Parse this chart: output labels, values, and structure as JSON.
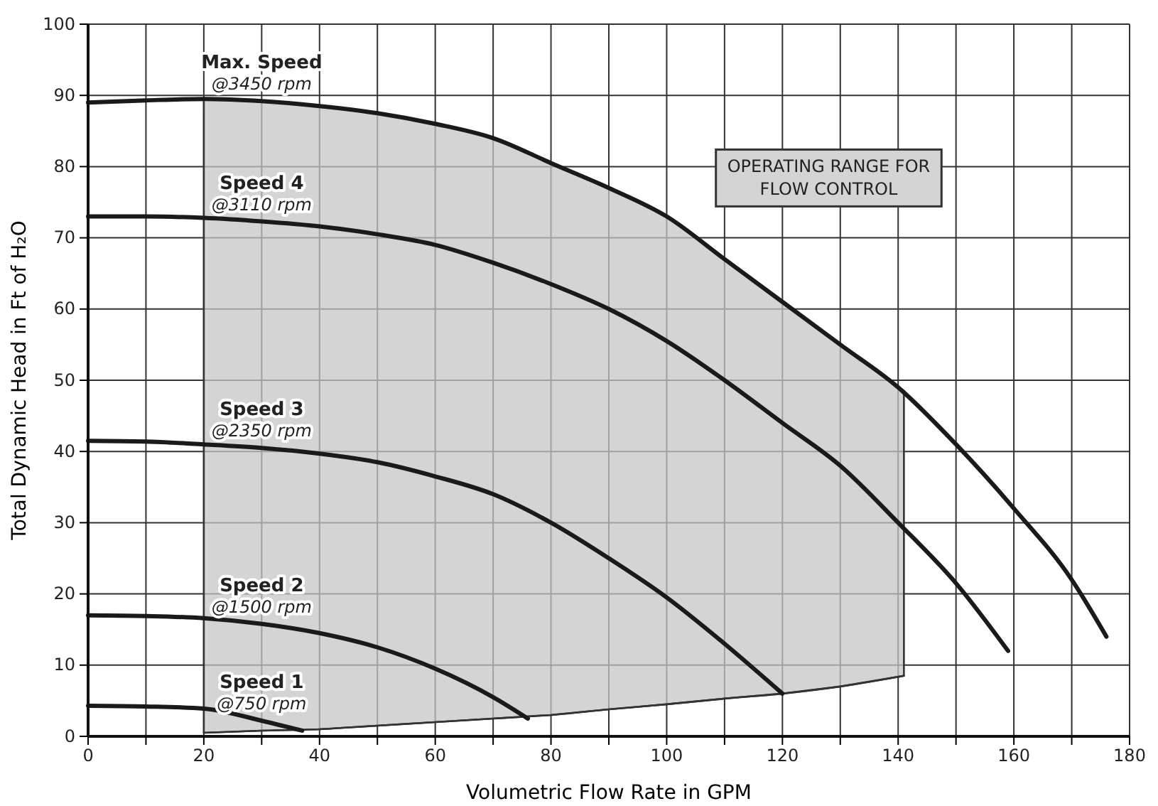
{
  "chart_data": {
    "type": "line",
    "xlabel": "Volumetric Flow Rate in GPM",
    "ylabel": "Total Dynamic Head in Ft of H₂O",
    "xlim": [
      0,
      180
    ],
    "ylim": [
      0,
      100
    ],
    "xticks": [
      0,
      {
        "value": 10,
        "label": null
      },
      20,
      {
        "value": 30,
        "label": null
      },
      40,
      {
        "value": 50,
        "label": null
      },
      60,
      {
        "value": 70,
        "label": null
      },
      80,
      {
        "value": 90,
        "label": null
      },
      100,
      {
        "value": 110,
        "label": null
      },
      120,
      {
        "value": 130,
        "label": null
      },
      140,
      {
        "value": 150,
        "label": null
      },
      160,
      {
        "value": 170,
        "label": null
      },
      180
    ],
    "yticks": [
      0,
      10,
      20,
      30,
      40,
      50,
      60,
      70,
      80,
      90,
      100
    ],
    "grid": true,
    "line_style": "solid",
    "marker": "none",
    "annotations": [
      "OPERATING RANGE FOR\nFLOW CONTROL"
    ],
    "series": [
      {
        "type": "line",
        "color": "#333333",
        "x": [
          20,
          30,
          40,
          50,
          60,
          70,
          80,
          90,
          100,
          110,
          120,
          130,
          141
        ],
        "values": [
          0.5,
          0.8,
          1,
          1.5,
          2,
          2.5,
          3,
          3.8,
          4.5,
          5.3,
          6,
          7,
          8.5
        ],
        "lower": [
          0.5,
          0.8,
          1,
          1.5,
          2,
          2.5,
          3,
          3.8,
          4.5,
          5.3,
          6,
          7,
          8.5
        ],
        "upper": [
          89.5,
          89.2,
          88.5,
          87.5,
          86,
          84,
          80.5,
          77,
          73,
          67,
          61,
          55,
          48.5
        ]
      },
      {
        "name": "Max. Speed\n@3450 rpm",
        "color": "#1a1a1a",
        "x": [
          0,
          10,
          20,
          30,
          40,
          50,
          60,
          70,
          80,
          90,
          100,
          110,
          120,
          130,
          140,
          150,
          160,
          170,
          176
        ],
        "values": [
          89,
          89.3,
          89.5,
          89.2,
          88.5,
          87.5,
          86,
          84,
          80.5,
          77,
          73,
          67,
          61,
          55,
          49,
          41,
          32,
          22,
          14
        ]
      },
      {
        "name": "Speed 4\n@3110 rpm",
        "color": "#1a1a1a",
        "x": [
          0,
          10,
          20,
          30,
          40,
          50,
          60,
          70,
          80,
          90,
          100,
          110,
          120,
          130,
          140,
          150,
          159
        ],
        "values": [
          73,
          73,
          72.8,
          72.3,
          71.6,
          70.5,
          69,
          66.5,
          63.5,
          60,
          55.5,
          50,
          44,
          38,
          30,
          21.5,
          12
        ]
      },
      {
        "name": "Speed 3\n@2350 rpm",
        "color": "#1a1a1a",
        "x": [
          0,
          10,
          20,
          30,
          40,
          50,
          60,
          70,
          80,
          90,
          100,
          110,
          120
        ],
        "values": [
          41.5,
          41.4,
          41,
          40.5,
          39.7,
          38.5,
          36.5,
          34,
          30,
          25,
          19.5,
          13,
          6
        ]
      },
      {
        "name": "Speed 2\n@1500 rpm",
        "color": "#1a1a1a",
        "x": [
          0,
          10,
          20,
          30,
          40,
          50,
          60,
          70,
          76
        ],
        "values": [
          17,
          16.9,
          16.6,
          15.8,
          14.5,
          12.5,
          9.5,
          5.5,
          2.5
        ]
      },
      {
        "name": "Speed 1\n@750 rpm",
        "color": "#1a1a1a",
        "x": [
          0,
          10,
          20,
          30,
          37
        ],
        "values": [
          4.3,
          4.2,
          3.9,
          2.2,
          0.8
        ]
      }
    ]
  }
}
